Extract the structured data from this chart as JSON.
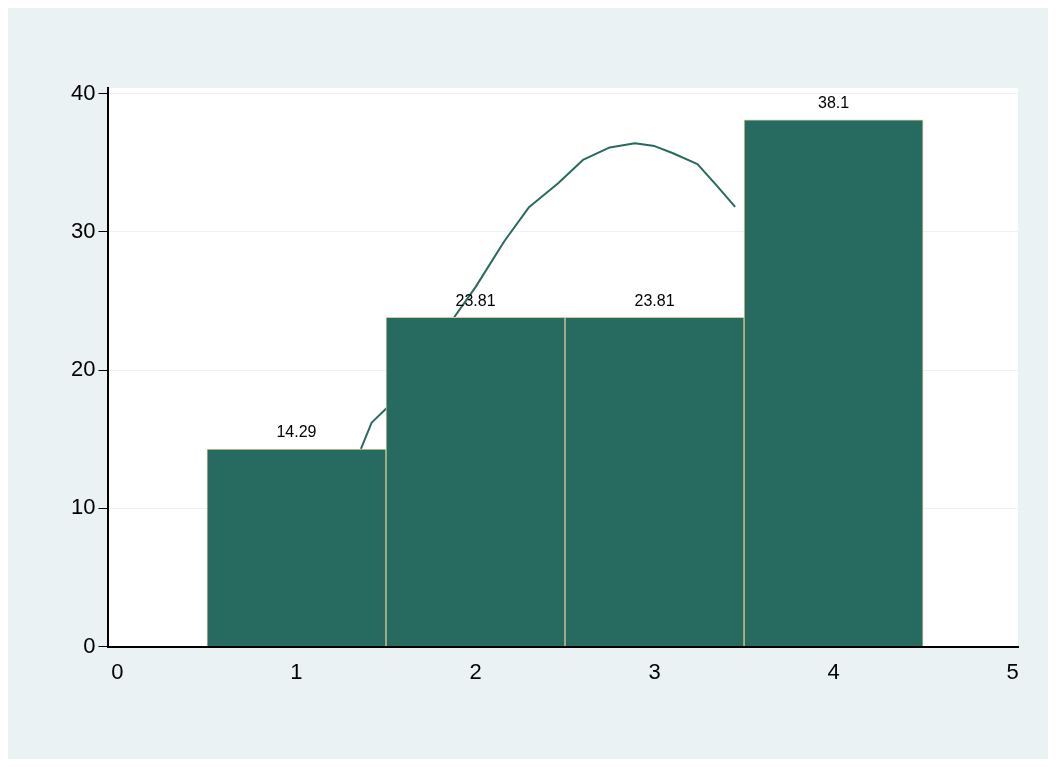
{
  "chart_data": {
    "type": "histogram",
    "bins": [
      0.5,
      1.5,
      2.5,
      3.5,
      4.5
    ],
    "series": [
      {
        "color": "#276a60",
        "values": [
          14.29,
          23.81,
          23.81,
          38.1
        ],
        "value_labels": [
          "14.29",
          "23.81",
          "23.81",
          "38.1"
        ]
      },
      {
        "type": "line",
        "color": "#276a60",
        "x": [
          1.36,
          1.42,
          1.5,
          1.88,
          2.0,
          2.16,
          2.3,
          2.46,
          2.6,
          2.75,
          2.89,
          3.0,
          3.1,
          3.24,
          3.35,
          3.45
        ],
        "values": [
          14.3,
          16.2,
          17.2,
          23.8,
          26.0,
          29.3,
          31.8,
          33.5,
          35.2,
          36.1,
          36.4,
          36.2,
          35.7,
          34.9,
          33.3,
          31.8
        ]
      }
    ],
    "xlim": [
      -0.05,
      5.03
    ],
    "xticks": [
      0,
      1,
      2,
      3,
      4,
      5
    ],
    "ylim": [
      0,
      40.4
    ],
    "yticks": [
      0,
      10,
      20,
      30,
      40
    ],
    "grid": "y",
    "legend": false
  }
}
